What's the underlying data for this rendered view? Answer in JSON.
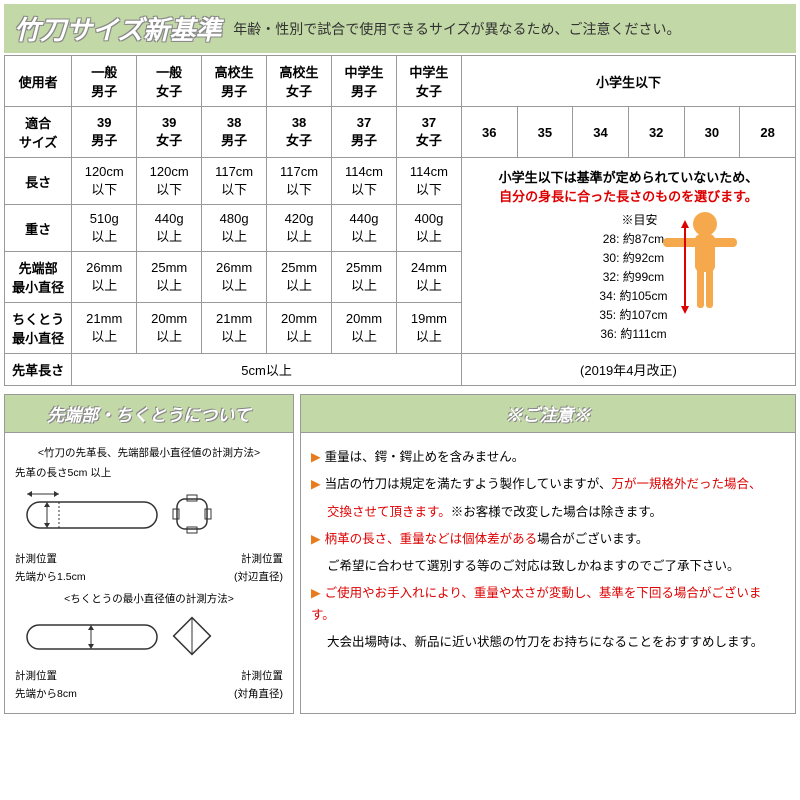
{
  "header": {
    "title": "竹刀サイズ新基準",
    "subtitle": "年齢・性別で試合で使用できるサイズが異なるため、ご注意ください。"
  },
  "table": {
    "row_user": "使用者",
    "row_size": "適合\nサイズ",
    "row_length": "長さ",
    "row_weight": "重さ",
    "row_tip": "先端部\n最小直径",
    "row_chikuto": "ちくとう\n最小直径",
    "row_sakigawa": "先革長さ",
    "users": [
      "一般\n男子",
      "一般\n女子",
      "高校生\n男子",
      "高校生\n女子",
      "中学生\n男子",
      "中学生\n女子"
    ],
    "sizes": [
      "39\n男子",
      "39\n女子",
      "38\n男子",
      "38\n女子",
      "37\n男子",
      "37\n女子"
    ],
    "lengths": [
      "120cm\n以下",
      "120cm\n以下",
      "117cm\n以下",
      "117cm\n以下",
      "114cm\n以下",
      "114cm\n以下"
    ],
    "weights": [
      "510g\n以上",
      "440g\n以上",
      "480g\n以上",
      "420g\n以上",
      "440g\n以上",
      "400g\n以上"
    ],
    "tips": [
      "26mm\n以上",
      "25mm\n以上",
      "26mm\n以上",
      "25mm\n以上",
      "25mm\n以上",
      "24mm\n以上"
    ],
    "chikuto": [
      "21mm\n以上",
      "20mm\n以上",
      "21mm\n以上",
      "20mm\n以上",
      "20mm\n以上",
      "19mm\n以上"
    ],
    "sakigawa": "5cm以上",
    "elem_header": "小学生以下",
    "elem_sizes": [
      "36",
      "35",
      "34",
      "32",
      "30",
      "28"
    ],
    "elem_note1": "小学生以下は基準が定められていないため、",
    "elem_note2": "自分の身長に合った長さのものを選びます。",
    "elem_guide_title": "※目安",
    "elem_guides": [
      "28: 約87cm",
      "30: 約92cm",
      "32: 約99cm",
      "34: 約105cm",
      "35: 約107cm",
      "36: 約111cm"
    ],
    "elem_date": "(2019年4月改正)"
  },
  "left_panel": {
    "title": "先端部・ちくとうについて",
    "caption1": "<竹刀の先革長、先端部最小直径値の計測方法>",
    "sub1a": "先革の長さ5cm 以上",
    "sub1b": "計測位置\n先端から1.5cm",
    "sub1c": "計測位置\n(対辺直径)",
    "caption2": "<ちくとうの最小直径値の計測方法>",
    "sub2a": "計測位置\n先端から8cm",
    "sub2b": "計測位置\n(対角直径)"
  },
  "right_panel": {
    "title": "※ご注意※",
    "notes": [
      {
        "text": "重量は、鍔・鍔止めを含みません。",
        "red": false
      },
      {
        "text": "当店の竹刀は規定を満たすよう製作していますが、",
        "red": false,
        "tail_red": "万が一規格外だった場合、"
      },
      {
        "text_red": "交換させて頂きます。",
        "tail": "※お客様で改変した場合は除きます。",
        "no_bullet": true,
        "indent": true
      },
      {
        "text_red_inline": "柄革の長さ、重量などは個体差がある",
        "tail": "場合がございます。"
      },
      {
        "text": "ご希望に合わせて選別する等のご対応は致しかねますのでご了承下さい。",
        "no_bullet": true,
        "indent": true
      },
      {
        "text_red": "ご使用やお手入れにより、重量や太さが変動し、基準を下回る場合がございます。"
      },
      {
        "text": "大会出場時は、新品に近い状態の竹刀をお持ちになることをおすすめします。",
        "no_bullet": true,
        "indent": true
      }
    ]
  },
  "colors": {
    "header_bg": "#c2d8a6",
    "border": "#999999",
    "bullet": "#e87b1a",
    "red": "#dd0000",
    "person": "#f5a94c",
    "arrow": "#d00000"
  }
}
